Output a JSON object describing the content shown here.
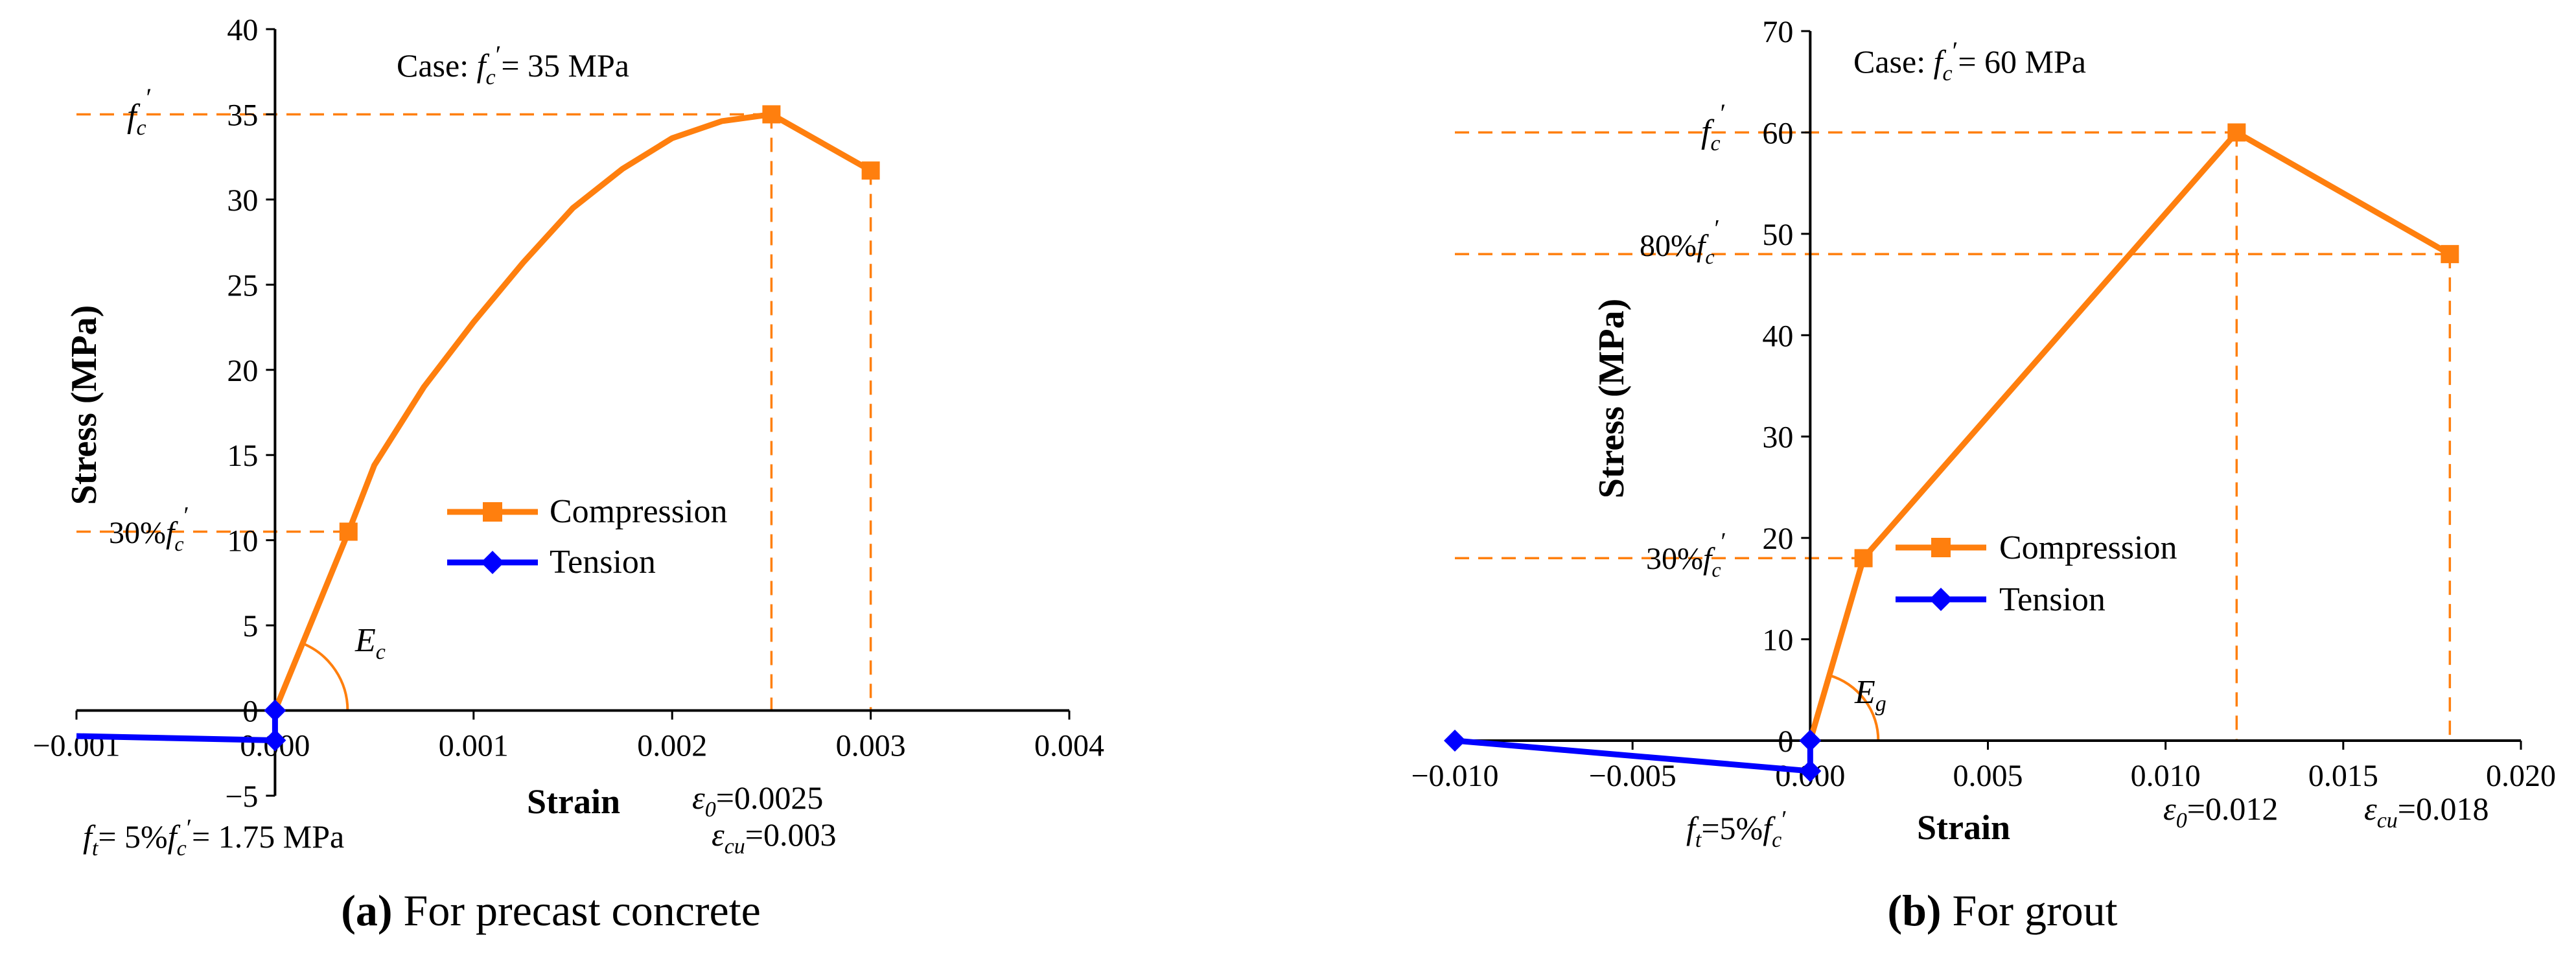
{
  "colors": {
    "compression": "#FF7F0E",
    "tension": "#0000FF",
    "axis": "#000000"
  },
  "chart_data": [
    {
      "type": "line",
      "caption_letter": "(a)",
      "caption_text": " For precast concrete",
      "case_prefix": "Case: ",
      "case_value": "= 35 MPa",
      "xlabel": "Strain",
      "ylabel": "Stress (MPa)",
      "xlim": [
        -0.001,
        0.004
      ],
      "ylim": [
        -5,
        40
      ],
      "x_ticks": [
        -0.001,
        0.0,
        0.001,
        0.002,
        0.003,
        0.004
      ],
      "x_tick_labels": [
        "−0.001",
        "0.000",
        "0.001",
        "0.002",
        "0.003",
        "0.004"
      ],
      "y_ticks": [
        -5,
        0,
        5,
        10,
        15,
        20,
        25,
        30,
        35,
        40
      ],
      "y_tick_labels": [
        "−5",
        "0",
        "5",
        "10",
        "15",
        "20",
        "25",
        "30",
        "35",
        "40"
      ],
      "legend_position": "center",
      "series": [
        {
          "name": "Compression",
          "color": "#FF7F0E",
          "marker": "square",
          "x": [
            0,
            0.00037,
            0.0005,
            0.00075,
            0.001,
            0.00125,
            0.0015,
            0.00175,
            0.002,
            0.00225,
            0.0025,
            0.003
          ],
          "y": [
            0,
            10.5,
            14.4,
            19.0,
            22.8,
            26.3,
            29.5,
            31.8,
            33.6,
            34.6,
            35.0,
            31.7
          ],
          "marker_indices": [
            1,
            10,
            11
          ]
        },
        {
          "name": "Tension",
          "color": "#0000FF",
          "marker": "diamond",
          "x": [
            -0.001,
            0.0,
            0.0
          ],
          "y": [
            -1.5,
            -1.75,
            0
          ],
          "marker_indices": [
            1,
            2
          ]
        }
      ],
      "annotations": {
        "fc_label": "f",
        "fc_sub": "c",
        "fc_prime": "′",
        "pct30_label": "30%",
        "ec_label": "E",
        "ec_sub": "c",
        "eps0_label": "ε",
        "eps0_sub": "0",
        "eps0_value": "=0.0025",
        "epscu_label": "ε",
        "epscu_sub": "cu",
        "epscu_value": "=0.003",
        "ft_label": "f",
        "ft_sub": "t",
        "ft_text_1": "= 5%",
        "ft_text_2": "= 1.75 MPa"
      }
    },
    {
      "type": "line",
      "caption_letter": "(b)",
      "caption_text": " For grout",
      "case_prefix": "Case: ",
      "case_value": "= 60 MPa",
      "xlabel": "Strain",
      "ylabel": "Stress (MPa)",
      "xlim": [
        -0.01,
        0.02
      ],
      "ylim": [
        -3,
        70
      ],
      "x_ticks": [
        -0.01,
        -0.005,
        0.0,
        0.005,
        0.01,
        0.015,
        0.02
      ],
      "x_tick_labels": [
        "−0.010",
        "−0.005",
        "0.000",
        "0.005",
        "0.010",
        "0.015",
        "0.020"
      ],
      "y_ticks": [
        0,
        10,
        20,
        30,
        40,
        50,
        60,
        70
      ],
      "y_tick_labels": [
        "0",
        "10",
        "20",
        "30",
        "40",
        "50",
        "60",
        "70"
      ],
      "legend_position": "center",
      "series": [
        {
          "name": "Compression",
          "color": "#FF7F0E",
          "marker": "square",
          "x": [
            0,
            0.0015,
            0.012,
            0.018
          ],
          "y": [
            0,
            18,
            60,
            48
          ],
          "marker_indices": [
            1,
            2,
            3
          ]
        },
        {
          "name": "Tension",
          "color": "#0000FF",
          "marker": "diamond",
          "x": [
            -0.01,
            0.0,
            0.0
          ],
          "y": [
            0,
            -3,
            0
          ],
          "marker_indices": [
            0,
            1,
            2
          ]
        }
      ],
      "annotations": {
        "fc_label": "f",
        "fc_sub": "c",
        "fc_prime": "′",
        "pct80_label": "80%",
        "pct30_label": "30%",
        "eg_label": "E",
        "eg_sub": "g",
        "eps0_label": "ε",
        "eps0_sub": "0",
        "eps0_value": "=0.012",
        "epscu_label": "ε",
        "epscu_sub": "cu",
        "epscu_value": "=0.018",
        "ft_label": "f",
        "ft_sub": "t",
        "ft_text_1": "=5%"
      }
    }
  ]
}
